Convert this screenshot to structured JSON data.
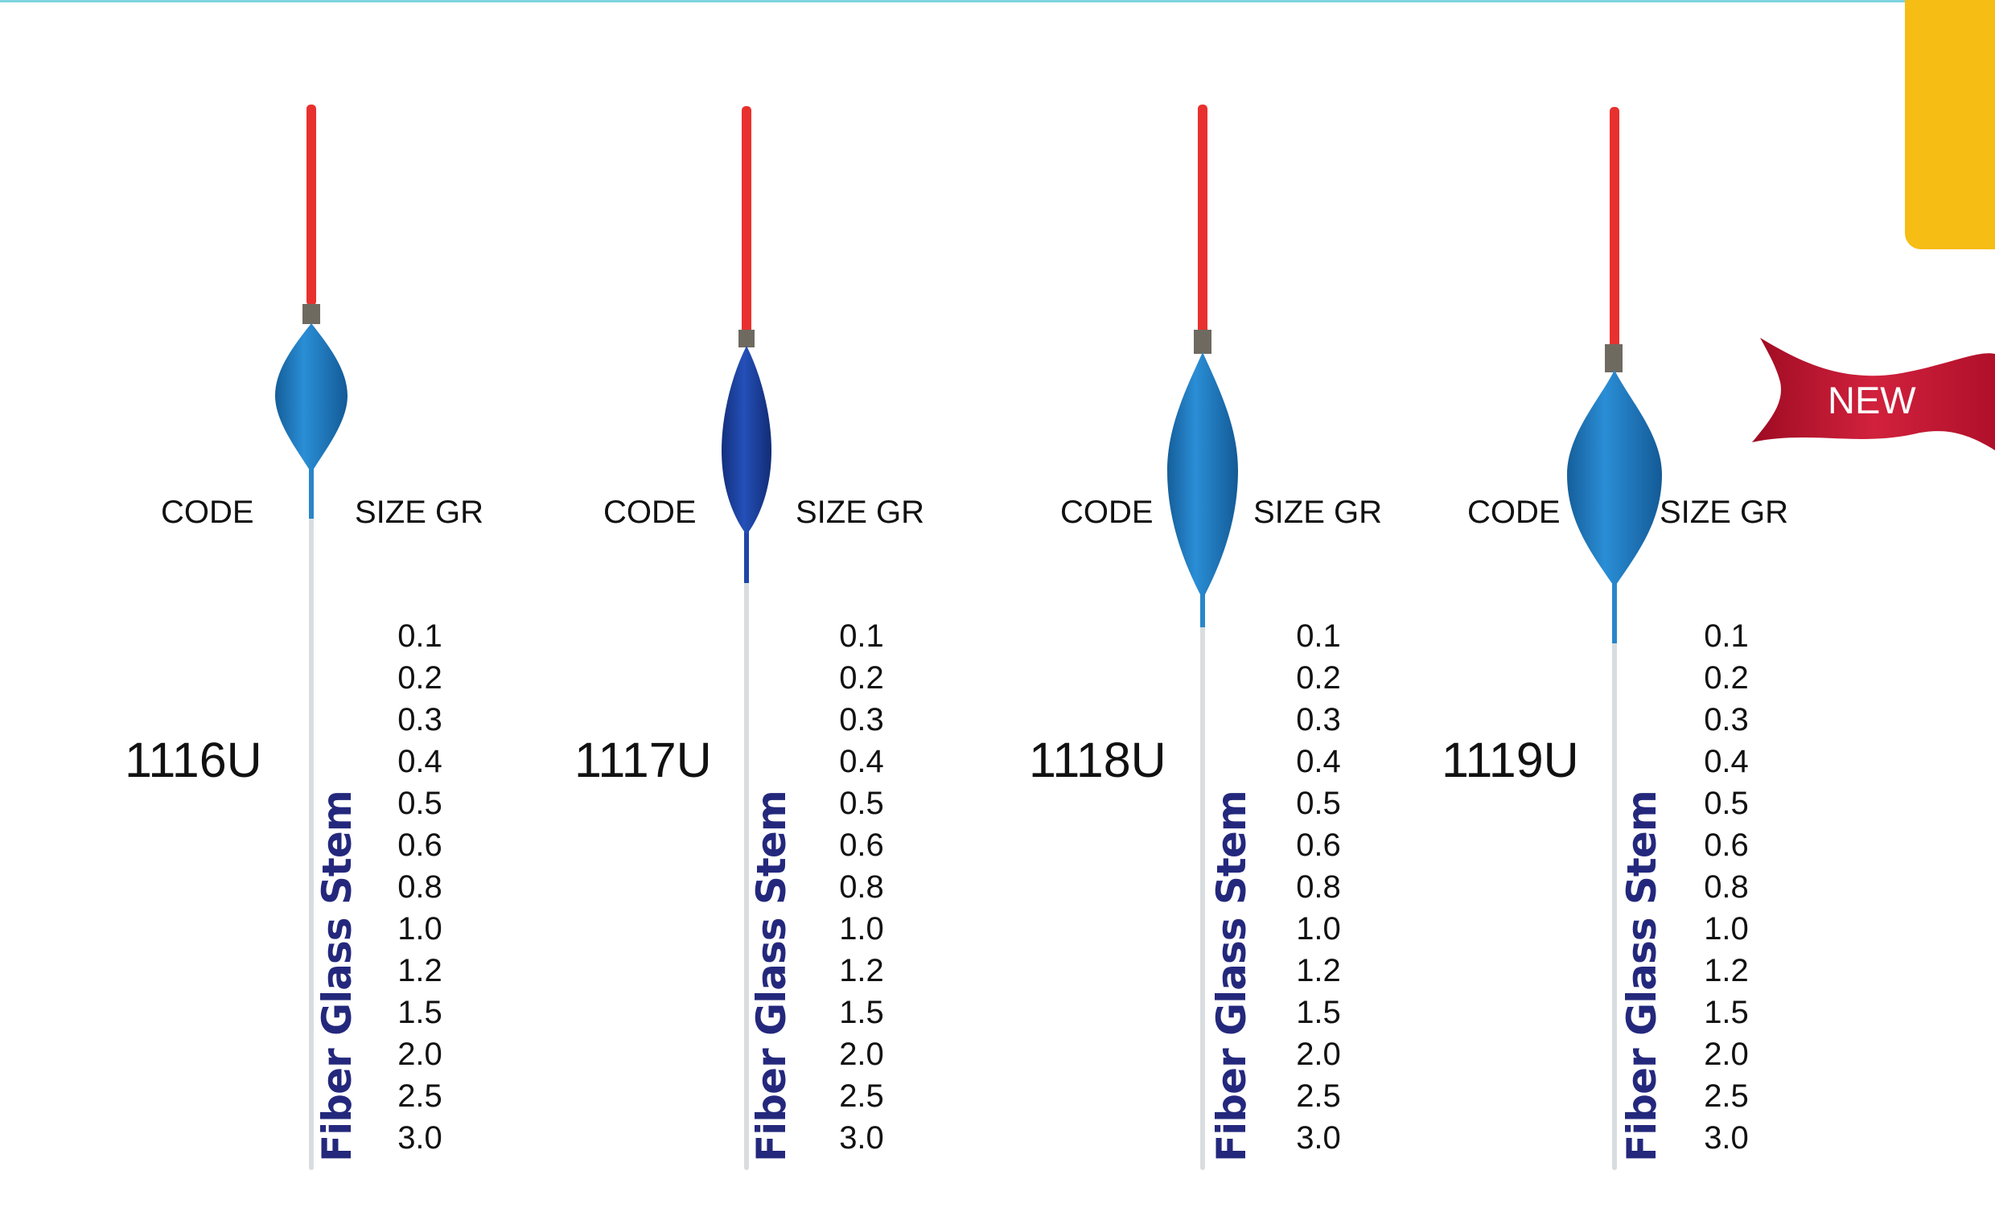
{
  "badge": {
    "label": "NEW"
  },
  "products": [
    {
      "code_label": "CODE",
      "size_label": "SIZE GR",
      "code": "1116U",
      "stem_label": "Fiber Glass Stem",
      "sizes": [
        "0.1",
        "0.2",
        "0.3",
        "0.4",
        "0.5",
        "0.6",
        "0.8",
        "1.0",
        "1.2",
        "1.5",
        "2.0",
        "2.5",
        "3.0"
      ]
    },
    {
      "code_label": "CODE",
      "size_label": "SIZE GR",
      "code": "1117U",
      "stem_label": "Fiber Glass Stem",
      "sizes": [
        "0.1",
        "0.2",
        "0.3",
        "0.4",
        "0.5",
        "0.6",
        "0.8",
        "1.0",
        "1.2",
        "1.5",
        "2.0",
        "2.5",
        "3.0"
      ]
    },
    {
      "code_label": "CODE",
      "size_label": "SIZE GR",
      "code": "1118U",
      "stem_label": "Fiber Glass Stem",
      "sizes": [
        "0.1",
        "0.2",
        "0.3",
        "0.4",
        "0.5",
        "0.6",
        "0.8",
        "1.0",
        "1.2",
        "1.5",
        "2.0",
        "2.5",
        "3.0"
      ]
    },
    {
      "code_label": "CODE",
      "size_label": "SIZE GR",
      "code": "1119U",
      "stem_label": "Fiber Glass Stem",
      "sizes": [
        "0.1",
        "0.2",
        "0.3",
        "0.4",
        "0.5",
        "0.6",
        "0.8",
        "1.0",
        "1.2",
        "1.5",
        "2.0",
        "2.5",
        "3.0"
      ]
    }
  ],
  "colors": {
    "antenna": "#e8312f",
    "body_blue": "#1e7fc8",
    "body_dark_blue": "#1d3f9e",
    "stem": "#d9dde0",
    "label_navy": "#24287c",
    "accent_yellow": "#f6bd14",
    "ribbon_red": "#c8102e"
  }
}
